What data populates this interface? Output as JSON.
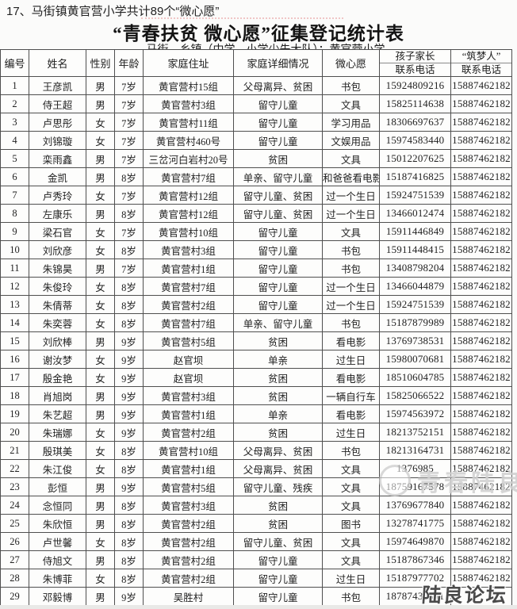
{
  "page": {
    "heading": "17、马街镇黄官营小学共计89个“微心愿”",
    "title": "“青春扶贫 微心愿”征集登记统计表",
    "subtitle": {
      "township": "马街",
      "rest": "乡镇（中学、小学少先大队）：黄官营小学"
    }
  },
  "table": {
    "columns": [
      "编号",
      "姓名",
      "性别",
      "年龄",
      "家庭住址",
      "家庭详细情况",
      "微心愿"
    ],
    "phone_columns": [
      {
        "line1": "孩子家长",
        "line2": "联系电话"
      },
      {
        "line1": "“筑梦人”",
        "line2": "联系电话"
      }
    ],
    "rows": [
      [
        "1",
        "王彦凯",
        "男",
        "7岁",
        "黄官营村15组",
        "父母离异、贫困",
        "书包",
        "15924809216",
        "15887462182"
      ],
      [
        "2",
        "侍王超",
        "男",
        "7岁",
        "黄官营村3组",
        "留守儿童",
        "文具",
        "15825114638",
        "15887462182"
      ],
      [
        "3",
        "卢思彤",
        "女",
        "7岁",
        "黄官营村11组",
        "留守儿童",
        "学习用品",
        "18306697637",
        "15887462182"
      ],
      [
        "4",
        "刘锦璇",
        "女",
        "7岁",
        "黄官营村460号",
        "留守儿童",
        "文娱用品",
        "15974583440",
        "15887462182"
      ],
      [
        "5",
        "栾雨鑫",
        "男",
        "7岁",
        "三岔河白岩村20号",
        "贫困",
        "文具",
        "15012207625",
        "15887462182"
      ],
      [
        "6",
        "金凯",
        "男",
        "8岁",
        "黄官营村7组",
        "单亲、留守儿童",
        "和爸爸看电影",
        "15187416825",
        "15887462182"
      ],
      [
        "7",
        "卢秀玲",
        "女",
        "7岁",
        "黄官营村12组",
        "留守儿童、贫困",
        "过一个生日",
        "15924751539",
        "15887462182"
      ],
      [
        "8",
        "左康乐",
        "男",
        "8岁",
        "黄官营村12组",
        "留守儿童、贫困",
        "过一个生日",
        "13466012474",
        "15887462182"
      ],
      [
        "9",
        "梁石官",
        "女",
        "7岁",
        "黄官营村10组",
        "留守儿童",
        "文具",
        "15911446849",
        "15887462182"
      ],
      [
        "10",
        "刘欣彦",
        "女",
        "8岁",
        "黄官营村3组",
        "留守儿童",
        "书包",
        "15911448415",
        "15887462182"
      ],
      [
        "11",
        "朱锦昊",
        "男",
        "7岁",
        "黄官营村1组",
        "留守儿童",
        "书包",
        "13408798204",
        "15887462182"
      ],
      [
        "12",
        "朱俊玲",
        "女",
        "8岁",
        "黄官营村7组",
        "留守儿童",
        "过一个生日",
        "13466044879",
        "15887462182"
      ],
      [
        "13",
        "朱倩蒂",
        "女",
        "8岁",
        "黄官营村2组",
        "留守儿童",
        "过一个生日",
        "15924751539",
        "15887462182"
      ],
      [
        "14",
        "朱奕蓉",
        "女",
        "8岁",
        "黄官营村7组",
        "单亲、留守儿童",
        "书包",
        "15187879989",
        "15887462182"
      ],
      [
        "15",
        "刘欣棒",
        "男",
        "9岁",
        "黄官营村5组",
        "贫困",
        "看电影",
        "13769738531",
        "15887462182"
      ],
      [
        "16",
        "谢汝梦",
        "女",
        "9岁",
        "赵官坝",
        "单亲",
        "过生日",
        "15980070681",
        "15887462182"
      ],
      [
        "17",
        "殷金艳",
        "女",
        "9岁",
        "赵官坝",
        "贫困",
        "看电影",
        "18510604785",
        "15887462182"
      ],
      [
        "18",
        "肖旭岗",
        "男",
        "9岁",
        "黄官营村3组",
        "贫困",
        "一辆自行车",
        "15825066522",
        "15887462182"
      ],
      [
        "19",
        "朱艺超",
        "男",
        "9岁",
        "黄官营村1组",
        "单亲",
        "看电影",
        "15974563972",
        "15887462182"
      ],
      [
        "20",
        "朱瑞娜",
        "女",
        "9岁",
        "黄官营村2组",
        "贫困",
        "过生日",
        "18213752151",
        "15887462182"
      ],
      [
        "21",
        "殷琪美",
        "女",
        "8岁",
        "黄官营村10组",
        "父母离异、贫困",
        "书包",
        "18213164731",
        "15887462182"
      ],
      [
        "22",
        "朱江俊",
        "女",
        "8岁",
        "黄官营村1组",
        "父母离异、贫困",
        "文具",
        "1376985",
        "15887462182"
      ],
      [
        "23",
        "彭恒",
        "男",
        "9岁",
        "黄官营村5组",
        "留守儿童、残疾",
        "文具",
        "18759167578",
        "15887462182"
      ],
      [
        "24",
        "念恒同",
        "男",
        "8岁",
        "黄官营村3组",
        "贫困",
        "文具",
        "13769677840",
        "15887462182"
      ],
      [
        "25",
        "朱欣恒",
        "男",
        "8岁",
        "黄官营村2组",
        "贫困",
        "图书",
        "13278741775",
        "15887462182"
      ],
      [
        "26",
        "卢世馨",
        "女",
        "8岁",
        "黄官营村2组",
        "留守儿童、贫困",
        "文具",
        "15974649870",
        "15887462182"
      ],
      [
        "27",
        "侍旭文",
        "男",
        "8岁",
        "黄官营村2组",
        "留守儿童",
        "文具",
        "15187867346",
        "15887462182"
      ],
      [
        "28",
        "朱博菲",
        "女",
        "8岁",
        "黄官营村2组",
        "留守儿童",
        "过生日",
        "15187977702",
        "15887462182"
      ],
      [
        "29",
        "邓毅博",
        "男",
        "9岁",
        "吴胜村",
        "留守儿童",
        "书包",
        "18787437541",
        ""
      ]
    ]
  },
  "watermarks": {
    "center_text": "青春陆良",
    "bottom_text": "陆良论坛"
  },
  "colors": {
    "border": "#4f4f4f",
    "text": "#1d1d1d",
    "watermark_gray": "#9e9e9e",
    "background": "#fbfbfa"
  }
}
